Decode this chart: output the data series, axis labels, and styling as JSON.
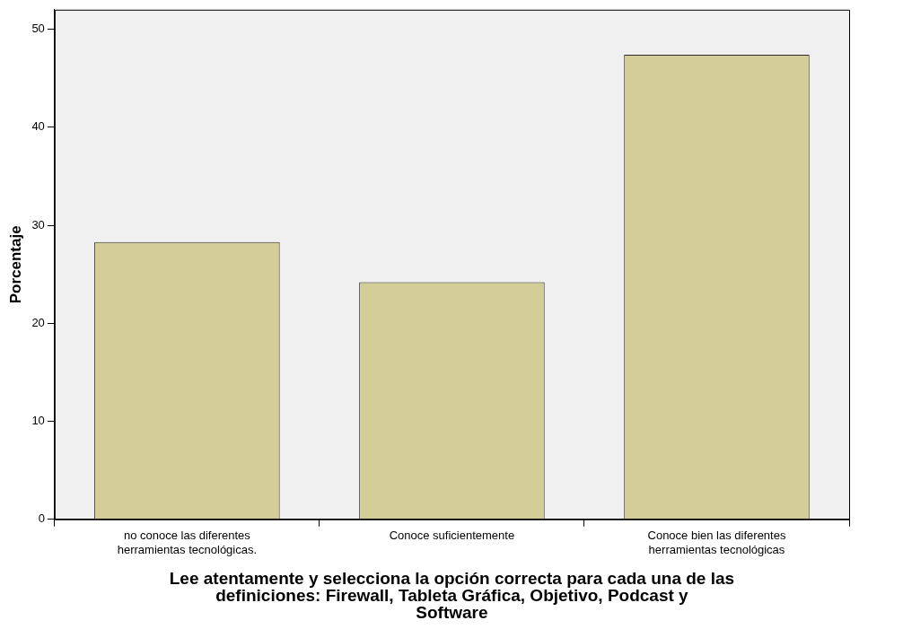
{
  "chart_data": {
    "type": "bar",
    "xlabel": "Lee atentamente y selecciona la opción correcta para cada una de las definiciones: Firewall, Tableta Gráfica, Objetivo, Podcast y Software",
    "ylabel": "Porcentaje",
    "categories": [
      "no conoce las diferentes herramientas tecnológicas.",
      "Conoce suficientemente",
      "Conoce bien las diferentes herramientas tecnológicas"
    ],
    "values": [
      28.3,
      24.2,
      47.4
    ],
    "color": "#d3ce97",
    "ylim": [
      0,
      52
    ],
    "yticks": [
      0,
      10,
      20,
      30,
      40,
      50
    ],
    "grid": false,
    "legend": false
  }
}
